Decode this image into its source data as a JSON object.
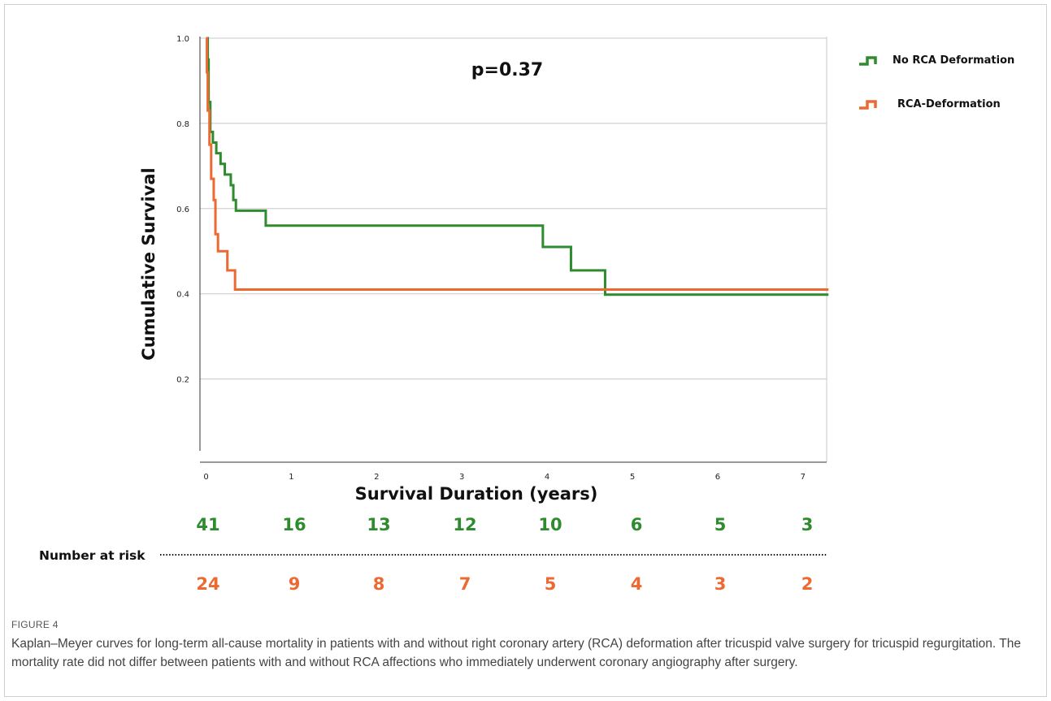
{
  "figure": {
    "label": "FIGURE 4",
    "caption": "Kaplan–Meyer curves for long-term all-cause mortality in patients with and without right coronary artery (RCA) deformation after tricuspid valve surgery for tricuspid regurgitation. The mortality rate did not differ between patients with and without RCA affections who immediately underwent coronary angiography after surgery."
  },
  "colors": {
    "green": "#2e8b2e",
    "orange": "#ec6a32",
    "grid": "#c8c8c8",
    "axis": "#333333"
  },
  "chart_data": {
    "type": "line",
    "subtype": "kaplan-meier step",
    "annotation": "p=0.37",
    "xlabel": "Survival Duration (years)",
    "ylabel": "Cumulative Survival",
    "xlim": [
      -0.05,
      7.3
    ],
    "ylim": [
      0.0,
      1.0
    ],
    "xticks": [
      0,
      1,
      2,
      3,
      4,
      5,
      6,
      7
    ],
    "yticks": [
      0.2,
      0.4,
      0.6,
      0.8,
      1.0
    ],
    "ytick_labels": [
      "0.2",
      "0.4",
      "0.6",
      "0.8",
      "1.0"
    ],
    "grid": "horizontal",
    "legend_position": "top-right",
    "series": [
      {
        "name": "No RCA Deformation",
        "color": "#2e8b2e",
        "steps": [
          [
            0,
            1.0
          ],
          [
            0.02,
            0.95
          ],
          [
            0.03,
            0.85
          ],
          [
            0.05,
            0.78
          ],
          [
            0.08,
            0.755
          ],
          [
            0.12,
            0.73
          ],
          [
            0.17,
            0.705
          ],
          [
            0.22,
            0.68
          ],
          [
            0.29,
            0.655
          ],
          [
            0.32,
            0.62
          ],
          [
            0.35,
            0.595
          ],
          [
            0.7,
            0.56
          ],
          [
            3.95,
            0.51
          ],
          [
            4.28,
            0.455
          ],
          [
            4.68,
            0.398
          ],
          [
            7.3,
            0.398
          ]
        ]
      },
      {
        "name": "RCA-Deformation",
        "color": "#ec6a32",
        "steps": [
          [
            0,
            1.0
          ],
          [
            0.01,
            0.92
          ],
          [
            0.02,
            0.83
          ],
          [
            0.04,
            0.75
          ],
          [
            0.06,
            0.67
          ],
          [
            0.09,
            0.62
          ],
          [
            0.11,
            0.54
          ],
          [
            0.14,
            0.5
          ],
          [
            0.25,
            0.455
          ],
          [
            0.34,
            0.41
          ],
          [
            7.3,
            0.41
          ]
        ]
      }
    ],
    "number_at_risk": {
      "label": "Number at risk",
      "time_points": [
        0,
        1,
        2,
        3,
        4,
        5,
        6,
        7
      ],
      "no_rca_deformation": [
        41,
        16,
        13,
        12,
        10,
        6,
        5,
        3
      ],
      "rca_deformation": [
        24,
        9,
        8,
        7,
        5,
        4,
        3,
        2
      ]
    }
  }
}
